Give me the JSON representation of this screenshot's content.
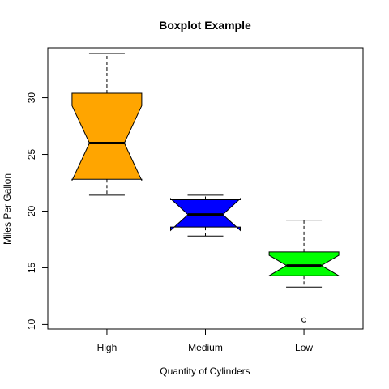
{
  "chart_data": {
    "type": "boxplot",
    "title": "Boxplot Example",
    "xlabel": "Quantity of Cylinders",
    "ylabel": "Miles Per Gallon",
    "ylim": [
      9.6,
      34.4
    ],
    "yticks": [
      10,
      15,
      20,
      25,
      30
    ],
    "notch": true,
    "grid": false,
    "categories": [
      "High",
      "Medium",
      "Low"
    ],
    "boxes": [
      {
        "name": "High",
        "min": 21.4,
        "q1": 22.8,
        "median": 26.0,
        "q3": 30.4,
        "max": 33.9,
        "notch_low": 22.7,
        "notch_high": 29.3,
        "outliers": [],
        "color": "#FFA500"
      },
      {
        "name": "Medium",
        "min": 17.8,
        "q1": 18.6,
        "median": 19.7,
        "q3": 21.0,
        "max": 21.4,
        "notch_low": 18.3,
        "notch_high": 21.1,
        "outliers": [],
        "color": "#0000FF"
      },
      {
        "name": "Low",
        "min": 13.3,
        "q1": 14.3,
        "median": 15.2,
        "q3": 16.4,
        "max": 19.2,
        "notch_low": 14.3,
        "notch_high": 16.1,
        "outliers": [
          10.4
        ],
        "color": "#00FF00"
      }
    ]
  }
}
